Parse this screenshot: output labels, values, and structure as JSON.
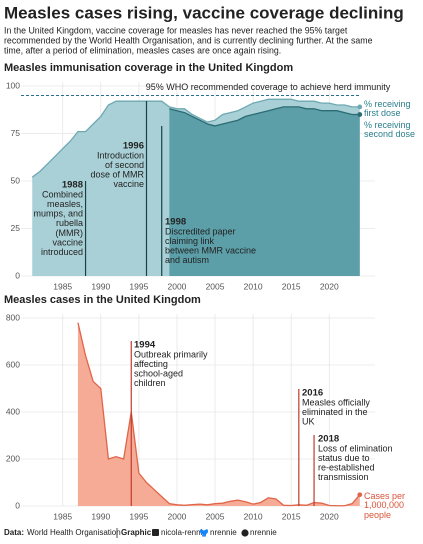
{
  "header": {
    "title": "Measles cases rising, vaccine coverage declining",
    "subtitle": [
      "In the United Kingdom, vaccine coverage for measles has never reached the 95% target",
      "recommended by the World Health Organisation, and is currently declining further. At the same",
      "time, after a period of elimination, measles cases are once again rising."
    ]
  },
  "chart_data": [
    {
      "type": "area",
      "title": "Measles immunisation coverage in the United Kingdom",
      "x": [
        1981,
        1982,
        1983,
        1984,
        1985,
        1986,
        1987,
        1988,
        1989,
        1990,
        1991,
        1992,
        1993,
        1994,
        1995,
        1996,
        1997,
        1998,
        1999,
        2000,
        2001,
        2002,
        2003,
        2004,
        2005,
        2006,
        2007,
        2008,
        2009,
        2010,
        2011,
        2012,
        2013,
        2014,
        2015,
        2016,
        2017,
        2018,
        2019,
        2020,
        2021,
        2022,
        2023,
        2024
      ],
      "series": [
        {
          "name": "% receiving first dose",
          "color": "#a9d0d6",
          "line_color": "#6ea8b2",
          "label_color": "#2b7f8c",
          "values": [
            52,
            55,
            59,
            63,
            67,
            71,
            76,
            76,
            80,
            84,
            90,
            92,
            92,
            92,
            92,
            92,
            92,
            92,
            89,
            88,
            88,
            85,
            83,
            81,
            82,
            85,
            86,
            87,
            89,
            91,
            92,
            93,
            93,
            93,
            93,
            92,
            92,
            92,
            91,
            91,
            90,
            90,
            89,
            89
          ]
        },
        {
          "name": "% receiving second dose",
          "color": "#5c9fa8",
          "line_color": "#2b6b74",
          "label_color": "#2b7f8c",
          "values": [
            null,
            null,
            null,
            null,
            null,
            null,
            null,
            null,
            null,
            null,
            null,
            null,
            null,
            null,
            null,
            null,
            null,
            null,
            88,
            87,
            86,
            84,
            82,
            80,
            79,
            80,
            81,
            82,
            84,
            85,
            86,
            87,
            88,
            89,
            89,
            89,
            88,
            88,
            87,
            87,
            87,
            86,
            85,
            85
          ]
        }
      ],
      "xlim": [
        1979,
        2026
      ],
      "xticks": [
        1985,
        1990,
        1995,
        2000,
        2005,
        2010,
        2015,
        2020
      ],
      "ylim": [
        0,
        100
      ],
      "yticks": [
        0,
        25,
        50,
        75,
        100
      ],
      "grid": true,
      "reference": {
        "value": 95,
        "label": "95% WHO recommended coverage to achieve herd immunity",
        "color": "#2a6f8f"
      },
      "annotations": [
        {
          "year": 1988,
          "lines": [
            "Combined",
            "measles,",
            "mumps, and",
            "rubella",
            "(MMR)",
            "vaccine",
            "introduced"
          ]
        },
        {
          "year": 1996,
          "lines": [
            "Introduction",
            "of second",
            "dose of MMR",
            "vaccine"
          ]
        },
        {
          "year": 1998,
          "lines": [
            "Discredited paper",
            "claiming link",
            "between MMR vaccine",
            "and autism"
          ]
        }
      ]
    },
    {
      "type": "area",
      "title": "Measles cases in the United Kingdom",
      "x": [
        1987,
        1988,
        1989,
        1990,
        1991,
        1992,
        1993,
        1994,
        1995,
        1996,
        1997,
        1998,
        1999,
        2000,
        2001,
        2002,
        2003,
        2004,
        2005,
        2006,
        2007,
        2008,
        2009,
        2010,
        2011,
        2012,
        2013,
        2014,
        2015,
        2016,
        2017,
        2018,
        2019,
        2020,
        2021,
        2022,
        2023,
        2024
      ],
      "series": [
        {
          "name": "Cases per 1,000,000 people",
          "color": "#f5ab95",
          "line_color": "#e0654a",
          "label_color": "#d9533a",
          "values": [
            780,
            640,
            530,
            500,
            200,
            210,
            200,
            400,
            140,
            100,
            70,
            40,
            10,
            5,
            3,
            6,
            8,
            5,
            10,
            12,
            20,
            25,
            18,
            8,
            15,
            35,
            30,
            3,
            2,
            5,
            3,
            15,
            12,
            2,
            1,
            1,
            10,
            48
          ]
        }
      ],
      "xlim": [
        1979,
        2026
      ],
      "xticks": [
        1985,
        1990,
        1995,
        2000,
        2005,
        2010,
        2015,
        2020
      ],
      "ylim": [
        0,
        800
      ],
      "yticks": [
        0,
        200,
        400,
        600,
        800
      ],
      "grid": true,
      "annotations": [
        {
          "year": 1994,
          "lines": [
            "Outbreak primarily",
            "affecting",
            "school-aged",
            "children"
          ]
        },
        {
          "year": 2016,
          "lines": [
            "Measles officially",
            "eliminated in the",
            "UK"
          ]
        },
        {
          "year": 2018,
          "lines": [
            "Loss of elimination",
            "status due to",
            "re-established",
            "transmission"
          ]
        }
      ]
    }
  ],
  "footer": {
    "data_label": "Data:",
    "data_source": "World Health Organisation",
    "graphic_label": "Graphic:",
    "linkedin": "nicola-rennie",
    "bluesky": "nrennie",
    "github": "nrennie"
  }
}
